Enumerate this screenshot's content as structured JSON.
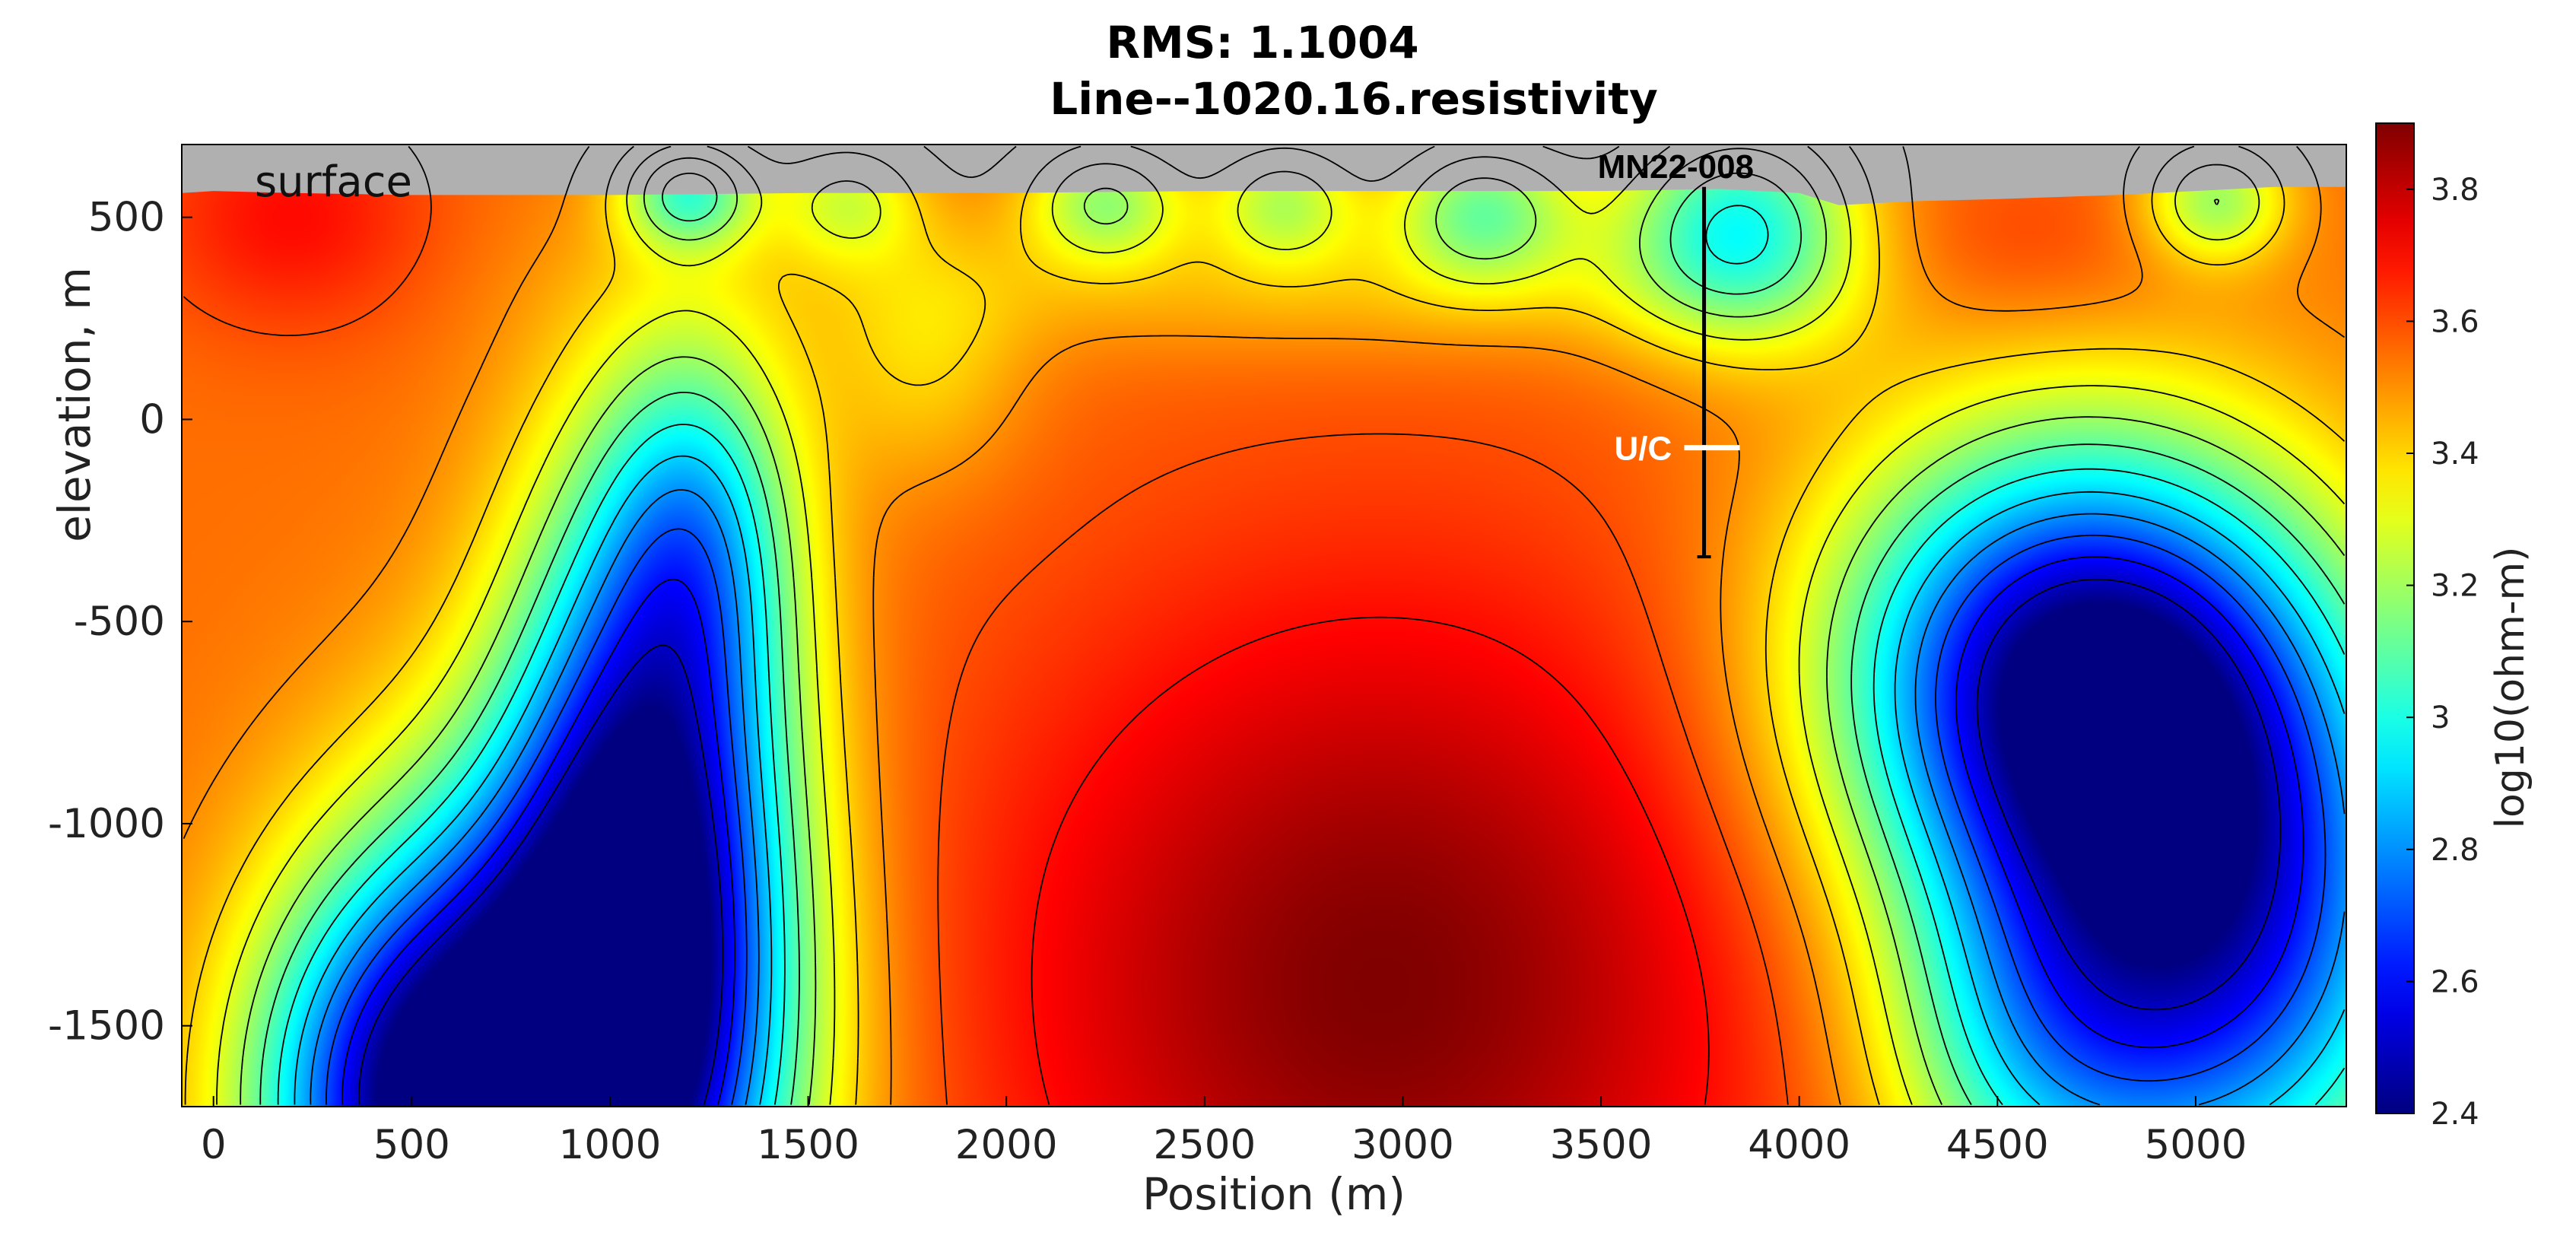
{
  "chart_data": {
    "type": "heatmap",
    "title": "RMS: 1.1004",
    "subtitle": "Line--1020.16.resistivity",
    "xlabel": "Position (m)",
    "ylabel": "elevation, m",
    "xlim": [
      -80,
      5380
    ],
    "ylim": [
      -1700,
      680
    ],
    "xticks": [
      0,
      500,
      1000,
      1500,
      2000,
      2500,
      3000,
      3500,
      4000,
      4500,
      5000
    ],
    "yticks": [
      500,
      0,
      -500,
      -1000,
      -1500
    ],
    "colorbar": {
      "label": "log10(ohm-m)",
      "range": [
        2.4,
        3.9
      ],
      "ticks": [
        3.8,
        3.6,
        3.4,
        3.2,
        3,
        2.8,
        2.6,
        2.4
      ],
      "colormap": "jet"
    },
    "colors": {
      "surface": "#b0b0b0",
      "contour": "#000000",
      "drill_hole": "#000000",
      "uc_marker": "#ffffff"
    },
    "surface_label": "surface",
    "background_log10_ohm_m": 3.55,
    "anomalies": [
      {
        "x": 850,
        "y": -1650,
        "sx": 380,
        "sy": 520,
        "amp": -1.25
      },
      {
        "x": 1100,
        "y": -900,
        "sx": 250,
        "sy": 600,
        "amp": -0.9
      },
      {
        "x": 1230,
        "y": -250,
        "sx": 170,
        "sy": 330,
        "amp": -0.35
      },
      {
        "x": 420,
        "y": -1700,
        "sx": 260,
        "sy": 380,
        "amp": -0.5
      },
      {
        "x": 4700,
        "y": -650,
        "sx": 430,
        "sy": 420,
        "amp": -1.15
      },
      {
        "x": 5100,
        "y": -1300,
        "sx": 380,
        "sy": 500,
        "amp": -0.8
      },
      {
        "x": 4600,
        "y": -1550,
        "sx": 300,
        "sy": 350,
        "amp": -0.4
      },
      {
        "x": 2950,
        "y": -1400,
        "sx": 700,
        "sy": 700,
        "amp": 0.35
      },
      {
        "x": 200,
        "y": 500,
        "sx": 250,
        "sy": 200,
        "amp": 0.15
      },
      {
        "x": 4550,
        "y": 400,
        "sx": 300,
        "sy": 160,
        "amp": 0.1
      },
      {
        "x": 1200,
        "y": 560,
        "sx": 120,
        "sy": 100,
        "amp": -0.45
      },
      {
        "x": 1600,
        "y": 540,
        "sx": 130,
        "sy": 110,
        "amp": -0.25
      },
      {
        "x": 2250,
        "y": 540,
        "sx": 140,
        "sy": 110,
        "amp": -0.35
      },
      {
        "x": 2700,
        "y": 540,
        "sx": 130,
        "sy": 110,
        "amp": -0.3
      },
      {
        "x": 3200,
        "y": 520,
        "sx": 160,
        "sy": 130,
        "amp": -0.4
      },
      {
        "x": 3850,
        "y": 480,
        "sx": 220,
        "sy": 200,
        "amp": -0.55
      },
      {
        "x": 2900,
        "y": 330,
        "sx": 900,
        "sy": 130,
        "amp": -0.12
      },
      {
        "x": 5050,
        "y": 540,
        "sx": 130,
        "sy": 110,
        "amp": -0.35
      },
      {
        "x": 1800,
        "y": 150,
        "sx": 180,
        "sy": 220,
        "amp": -0.15
      }
    ],
    "surface_profile": {
      "x": [
        -80,
        0,
        200,
        500,
        1000,
        1500,
        2000,
        2500,
        3000,
        3500,
        3800,
        4000,
        4100,
        4300,
        4500,
        4800,
        5000,
        5200,
        5380
      ],
      "y": [
        560,
        565,
        560,
        555,
        555,
        560,
        560,
        565,
        565,
        565,
        570,
        560,
        530,
        540,
        545,
        555,
        565,
        575,
        575
      ]
    },
    "drill_hole": {
      "label": "MN22-008",
      "x": 3760,
      "top_elevation": 575,
      "bottom_elevation": -340
    },
    "uc_marker": {
      "label": "U/C",
      "elevation": -70,
      "x_from": 3710,
      "x_to": 3850
    }
  }
}
